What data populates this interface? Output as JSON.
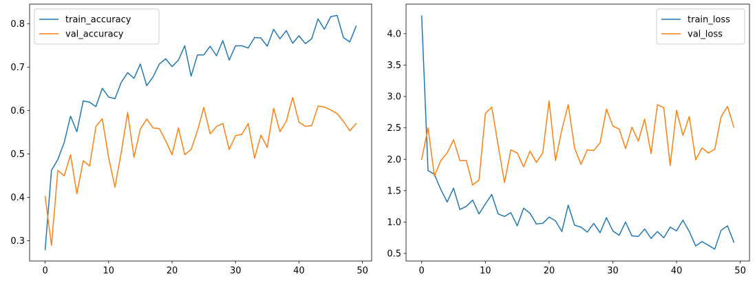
{
  "chart_data": [
    {
      "type": "line",
      "title": "",
      "xlabel": "",
      "ylabel": "",
      "xlim": [
        -2.45,
        51.45
      ],
      "ylim": [
        0.253,
        0.845
      ],
      "xticks": [
        0,
        10,
        20,
        30,
        40,
        50
      ],
      "yticks": [
        0.3,
        0.4,
        0.5,
        0.6,
        0.7,
        0.8
      ],
      "grid": false,
      "legend": "top-left",
      "series": [
        {
          "name": "train_accuracy",
          "color": "#1f77b4",
          "values": [
            0.279,
            0.462,
            0.487,
            0.526,
            0.587,
            0.551,
            0.622,
            0.619,
            0.609,
            0.651,
            0.631,
            0.627,
            0.665,
            0.687,
            0.674,
            0.707,
            0.657,
            0.677,
            0.707,
            0.719,
            0.701,
            0.716,
            0.749,
            0.679,
            0.728,
            0.728,
            0.748,
            0.726,
            0.761,
            0.716,
            0.749,
            0.749,
            0.744,
            0.768,
            0.767,
            0.748,
            0.787,
            0.765,
            0.784,
            0.755,
            0.772,
            0.754,
            0.765,
            0.811,
            0.787,
            0.816,
            0.819,
            0.768,
            0.758,
            0.794
          ]
        },
        {
          "name": "val_accuracy",
          "color": "#ff7f0e",
          "values": [
            0.402,
            0.289,
            0.462,
            0.449,
            0.498,
            0.408,
            0.484,
            0.472,
            0.563,
            0.581,
            0.492,
            0.423,
            0.504,
            0.595,
            0.492,
            0.557,
            0.58,
            0.56,
            0.558,
            0.53,
            0.498,
            0.56,
            0.498,
            0.51,
            0.553,
            0.607,
            0.546,
            0.563,
            0.57,
            0.51,
            0.542,
            0.545,
            0.57,
            0.49,
            0.543,
            0.515,
            0.605,
            0.551,
            0.575,
            0.63,
            0.573,
            0.563,
            0.565,
            0.61,
            0.608,
            0.601,
            0.593,
            0.575,
            0.553,
            0.57
          ]
        }
      ]
    },
    {
      "type": "line",
      "title": "",
      "xlabel": "",
      "ylabel": "",
      "xlim": [
        -2.45,
        51.45
      ],
      "ylim": [
        0.38,
        4.47
      ],
      "xticks": [
        0,
        10,
        20,
        30,
        40,
        50
      ],
      "yticks": [
        0.5,
        1.0,
        1.5,
        2.0,
        2.5,
        3.0,
        3.5,
        4.0
      ],
      "grid": false,
      "legend": "top-right",
      "series": [
        {
          "name": "train_loss",
          "color": "#1f77b4",
          "values": [
            4.28,
            1.82,
            1.76,
            1.52,
            1.32,
            1.54,
            1.2,
            1.25,
            1.35,
            1.13,
            1.29,
            1.44,
            1.13,
            1.09,
            1.15,
            0.94,
            1.22,
            1.14,
            0.97,
            0.98,
            1.08,
            1.02,
            0.85,
            1.27,
            0.95,
            0.92,
            0.84,
            0.98,
            0.83,
            1.07,
            0.86,
            0.79,
            1.0,
            0.78,
            0.77,
            0.89,
            0.74,
            0.85,
            0.75,
            0.92,
            0.86,
            1.03,
            0.85,
            0.62,
            0.69,
            0.63,
            0.57,
            0.87,
            0.94,
            0.68
          ]
        },
        {
          "name": "val_loss",
          "color": "#ff7f0e",
          "values": [
            2.0,
            2.5,
            1.73,
            1.98,
            2.1,
            2.31,
            1.98,
            1.98,
            1.59,
            1.67,
            2.73,
            2.83,
            2.22,
            1.63,
            2.15,
            2.1,
            1.88,
            2.13,
            1.95,
            2.1,
            2.93,
            1.98,
            2.47,
            2.87,
            2.18,
            1.92,
            2.15,
            2.14,
            2.26,
            2.8,
            2.53,
            2.48,
            2.17,
            2.51,
            2.29,
            2.64,
            2.09,
            2.87,
            2.82,
            1.9,
            2.78,
            2.38,
            2.68,
            1.99,
            2.18,
            2.1,
            2.16,
            2.68,
            2.84,
            2.51
          ]
        }
      ]
    }
  ]
}
